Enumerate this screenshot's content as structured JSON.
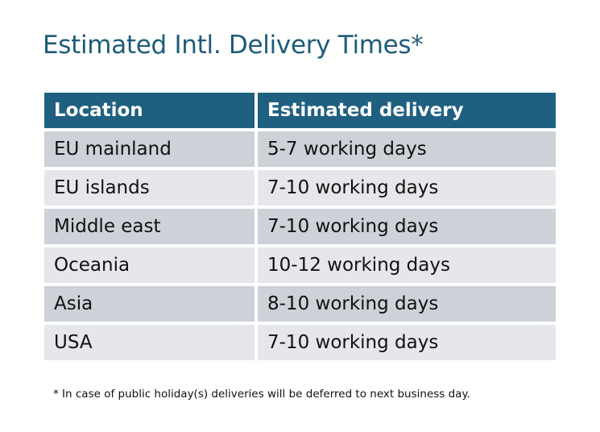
{
  "title": "Estimated Intl. Delivery Times*",
  "table": {
    "headers": [
      "Location",
      "Estimated delivery"
    ],
    "rows": [
      [
        "EU mainland",
        "5-7 working days"
      ],
      [
        "EU islands",
        "7-10 working days"
      ],
      [
        "Middle east",
        "7-10 working days"
      ],
      [
        "Oceania",
        "10-12 working days"
      ],
      [
        "Asia",
        "8-10 working days"
      ],
      [
        "USA",
        "7-10 working days"
      ]
    ]
  },
  "footnote": "* In case of public holiday(s) deliveries will be deferred to next business day.",
  "colors": {
    "title": "#1f5b7a",
    "header_bg": "#1f6080",
    "row_odd": "#cdd1d8",
    "row_even": "#e5e7ea"
  }
}
